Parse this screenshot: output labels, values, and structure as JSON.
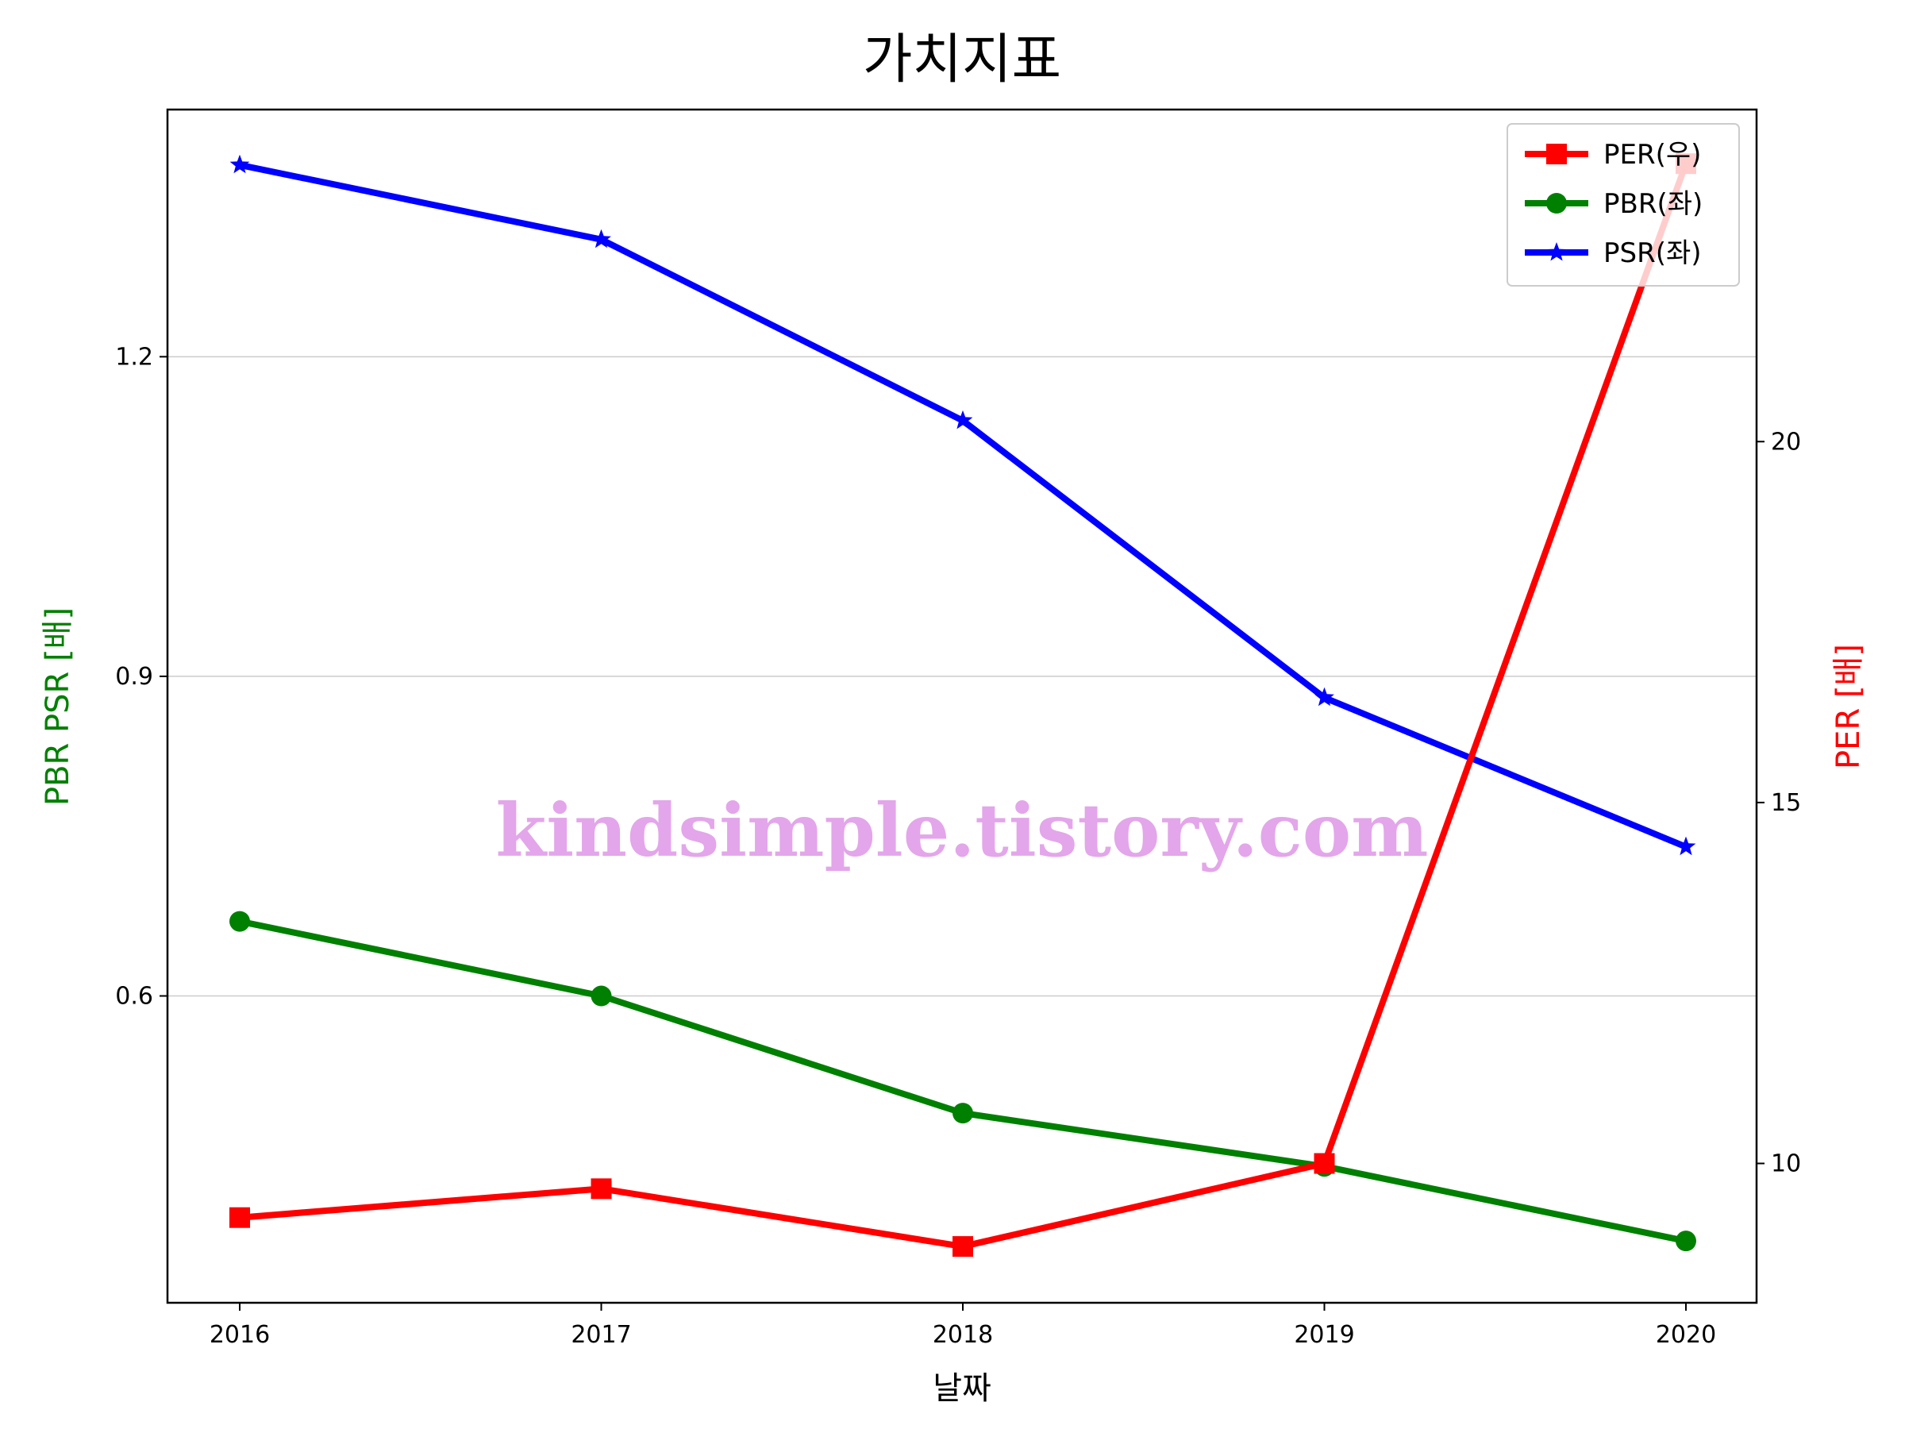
{
  "chart_data": {
    "type": "line",
    "title": "가치지표",
    "xlabel": "날짜",
    "ylabel_left": "PBR PSR [배]",
    "ylabel_right": "PER [배]",
    "categories": [
      "2016",
      "2017",
      "2018",
      "2019",
      "2020"
    ],
    "y_left": {
      "lim": [
        0.312,
        1.432
      ],
      "ticks": [
        "0.6",
        "0.9",
        "1.2"
      ],
      "tick_values": [
        0.6,
        0.9,
        1.2
      ],
      "grid": true
    },
    "y_right": {
      "lim": [
        8.07,
        24.6
      ],
      "ticks": [
        "10",
        "15",
        "20"
      ],
      "tick_values": [
        10,
        15,
        20
      ]
    },
    "series": [
      {
        "name": "PER(우)",
        "axis": "right",
        "color": "#ff0000",
        "marker": "square",
        "values": [
          9.25,
          9.65,
          8.85,
          10.0,
          23.85
        ]
      },
      {
        "name": "PBR(좌)",
        "axis": "left",
        "color": "#008000",
        "marker": "circle",
        "values": [
          0.67,
          0.6,
          0.49,
          0.44,
          0.37
        ]
      },
      {
        "name": "PSR(좌)",
        "axis": "left",
        "color": "#0000ff",
        "marker": "star",
        "values": [
          1.38,
          1.31,
          1.14,
          0.88,
          0.74
        ]
      }
    ],
    "legend_position": "top-right",
    "watermark": "kindsimple.tistory.com"
  },
  "colors": {
    "left_axis_label": "#008000",
    "right_axis_label": "#ff0000",
    "watermark": "#e3a6ea"
  }
}
